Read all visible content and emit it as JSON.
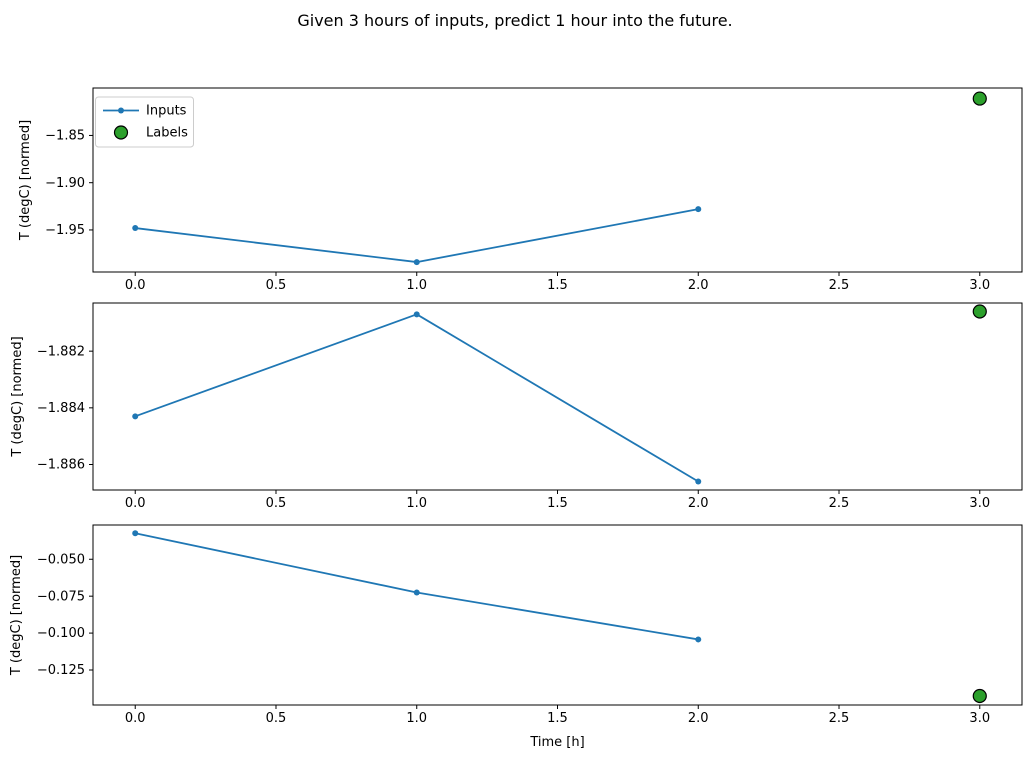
{
  "figure": {
    "title": "Given 3 hours of inputs, predict 1 hour into the future.",
    "background": "#ffffff"
  },
  "colors": {
    "inputs_line": "#1f77b4",
    "labels_fill": "#2ca02c",
    "labels_edge": "#000000",
    "axis": "#000000",
    "legend_border": "#cccccc"
  },
  "legend": {
    "items": [
      {
        "label": "Inputs",
        "marker": "line-with-dot",
        "color": "#1f77b4"
      },
      {
        "label": "Labels",
        "marker": "filled-circle",
        "color": "#2ca02c",
        "edge": "#000000"
      }
    ]
  },
  "chart_data": [
    {
      "type": "line",
      "title": "",
      "xlabel": "",
      "ylabel": "T (degC) [normed]",
      "x": [
        0,
        1,
        2
      ],
      "series": [
        {
          "name": "Inputs",
          "color": "#1f77b4",
          "values": [
            -1.948,
            -1.984,
            -1.928
          ]
        }
      ],
      "labels_series": {
        "name": "Labels",
        "color": "#2ca02c",
        "edge_color": "#000000",
        "x": [
          3
        ],
        "values": [
          -1.811
        ]
      },
      "xlim": [
        -0.15,
        3.15
      ],
      "ylim": [
        -1.9945,
        -1.7998
      ],
      "xticks": [
        0,
        0.5,
        1,
        1.5,
        2,
        2.5,
        3
      ],
      "xtick_labels": [
        "0.0",
        "0.5",
        "1.0",
        "1.5",
        "2.0",
        "2.5",
        "3.0"
      ],
      "yticks": [
        -1.85,
        -1.9,
        -1.95
      ],
      "ytick_labels": [
        "−1.85",
        "−1.90",
        "−1.95"
      ],
      "grid": false,
      "legend": true,
      "legend_position": "upper left"
    },
    {
      "type": "line",
      "title": "",
      "xlabel": "",
      "ylabel": "T (degC) [normed]",
      "x": [
        0,
        1,
        2
      ],
      "series": [
        {
          "name": "Inputs",
          "color": "#1f77b4",
          "values": [
            -1.8843,
            -1.8807,
            -1.8866
          ]
        }
      ],
      "labels_series": {
        "name": "Labels",
        "color": "#2ca02c",
        "edge_color": "#000000",
        "x": [
          3
        ],
        "values": [
          -1.8806
        ]
      },
      "xlim": [
        -0.15,
        3.15
      ],
      "ylim": [
        -1.8869,
        -1.8803
      ],
      "xticks": [
        0,
        0.5,
        1,
        1.5,
        2,
        2.5,
        3
      ],
      "xtick_labels": [
        "0.0",
        "0.5",
        "1.0",
        "1.5",
        "2.0",
        "2.5",
        "3.0"
      ],
      "yticks": [
        -1.882,
        -1.884,
        -1.886
      ],
      "ytick_labels": [
        "−1.882",
        "−1.884",
        "−1.886"
      ],
      "grid": false,
      "legend": false
    },
    {
      "type": "line",
      "title": "",
      "xlabel": "Time [h]",
      "ylabel": "T (degC) [normed]",
      "x": [
        0,
        1,
        2
      ],
      "series": [
        {
          "name": "Inputs",
          "color": "#1f77b4",
          "values": [
            -0.0324,
            -0.0725,
            -0.1043
          ]
        }
      ],
      "labels_series": {
        "name": "Labels",
        "color": "#2ca02c",
        "edge_color": "#000000",
        "x": [
          3
        ],
        "values": [
          -0.1426
        ]
      },
      "xlim": [
        -0.15,
        3.15
      ],
      "ylim": [
        -0.1487,
        -0.0268
      ],
      "xticks": [
        0,
        0.5,
        1,
        1.5,
        2,
        2.5,
        3
      ],
      "xtick_labels": [
        "0.0",
        "0.5",
        "1.0",
        "1.5",
        "2.0",
        "2.5",
        "3.0"
      ],
      "yticks": [
        -0.05,
        -0.075,
        -0.1,
        -0.125
      ],
      "ytick_labels": [
        "−0.050",
        "−0.075",
        "−0.100",
        "−0.125"
      ],
      "grid": false,
      "legend": false
    }
  ]
}
